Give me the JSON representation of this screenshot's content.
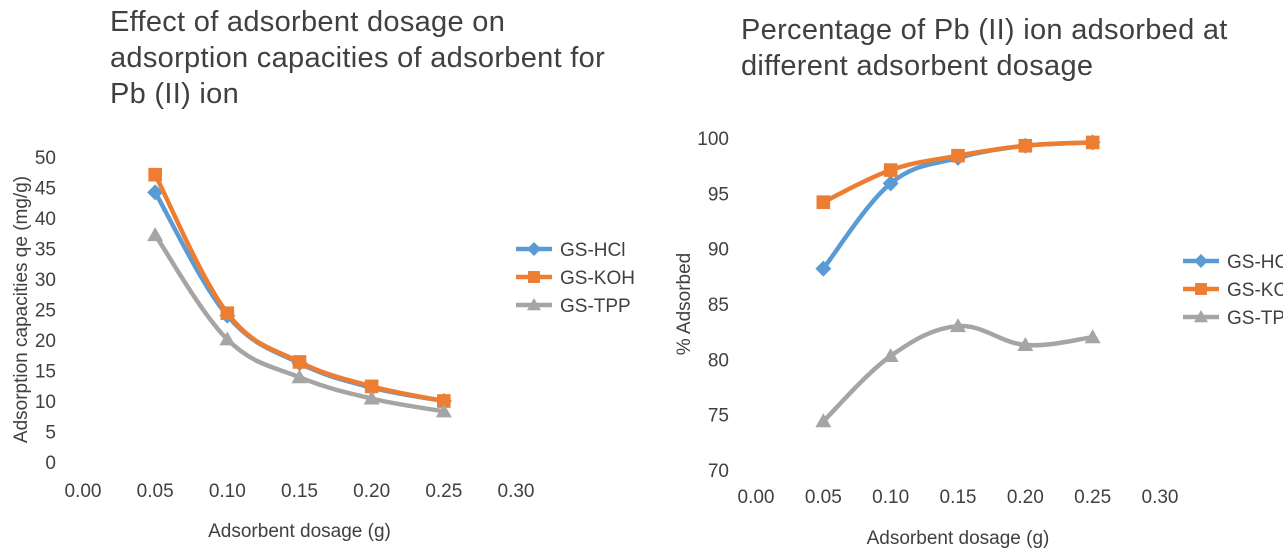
{
  "chart_data": [
    {
      "type": "line",
      "title": "Effect of adsorbent dosage on adsorption capacities of adsorbent for Pb (II) ion",
      "title_lines": [
        "Effect of adsorbent dosage on",
        "adsorption capacities of adsorbent for",
        "Pb (II) ion"
      ],
      "xlabel": "Adsorbent dosage (g)",
      "ylabel": "Adsorption capacities qe (mg/g)",
      "xlim": [
        0,
        0.3
      ],
      "ylim": [
        0,
        50
      ],
      "x_ticks": [
        "0.00",
        "0.05",
        "0.10",
        "0.15",
        "0.20",
        "0.25",
        "0.30"
      ],
      "y_ticks": [
        "0",
        "5",
        "10",
        "15",
        "20",
        "25",
        "30",
        "35",
        "40",
        "45",
        "50"
      ],
      "grid": false,
      "smooth": true,
      "legend_position": "right",
      "x": [
        0.05,
        0.1,
        0.15,
        0.2,
        0.25
      ],
      "series": [
        {
          "name": "GS-HCl",
          "color": "#5B9BD5",
          "marker": "diamond",
          "values": [
            44.2,
            24.0,
            16.2,
            12.2,
            10.0
          ]
        },
        {
          "name": "GS-KOH",
          "color": "#ED7D31",
          "marker": "square",
          "values": [
            47.1,
            24.4,
            16.4,
            12.4,
            10.0
          ]
        },
        {
          "name": "GS-TPP",
          "color": "#A5A5A5",
          "marker": "triangle",
          "values": [
            37.2,
            20.1,
            13.9,
            10.4,
            8.3
          ]
        }
      ]
    },
    {
      "type": "line",
      "title": "Percentage of Pb (II) ion adsorbed at different adsorbent dosage",
      "title_lines": [
        "Percentage of Pb (II) ion adsorbed at",
        "different adsorbent dosage"
      ],
      "xlabel": "Adsorbent dosage (g)",
      "ylabel": "% Adsorbed",
      "xlim": [
        0,
        0.3
      ],
      "ylim": [
        70,
        100
      ],
      "x_ticks": [
        "0.00",
        "0.05",
        "0.10",
        "0.15",
        "0.20",
        "0.25",
        "0.30"
      ],
      "y_ticks": [
        "70",
        "75",
        "80",
        "85",
        "90",
        "95",
        "100"
      ],
      "grid": false,
      "smooth": true,
      "legend_position": "right",
      "x": [
        0.05,
        0.1,
        0.15,
        0.2,
        0.25
      ],
      "series": [
        {
          "name": "GS-HCL",
          "color": "#5B9BD5",
          "marker": "diamond",
          "values": [
            88.2,
            95.9,
            98.2,
            99.3,
            99.6
          ]
        },
        {
          "name": "GS-KOH",
          "color": "#ED7D31",
          "marker": "square",
          "values": [
            94.2,
            97.1,
            98.4,
            99.3,
            99.6
          ]
        },
        {
          "name": "GS-TPP",
          "color": "#A5A5A5",
          "marker": "triangle",
          "values": [
            74.4,
            80.3,
            83.0,
            81.3,
            82.0
          ]
        }
      ]
    }
  ]
}
